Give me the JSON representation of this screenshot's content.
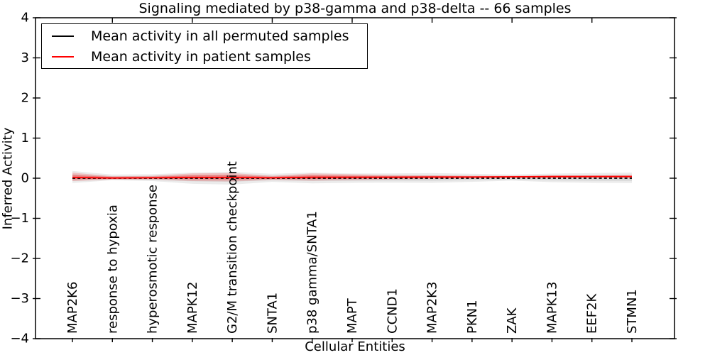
{
  "chart_data": {
    "type": "line",
    "title": "Signaling mediated by p38-gamma and p38-delta -- 66 samples",
    "xlabel": "Cellular Entities",
    "ylabel": "Inferred Activity",
    "ylim": [
      -4,
      4
    ],
    "yticks": [
      -4,
      -3,
      -2,
      -1,
      0,
      1,
      2,
      3,
      4
    ],
    "grid": false,
    "legend_position": "upper left",
    "categories": [
      "MAP2K6",
      "response to hypoxia",
      "hyperosmotic response",
      "MAPK12",
      "G2/M transition checkpoint",
      "SNTA1",
      "p38 gamma/SNTA1",
      "MAPT",
      "CCND1",
      "MAP2K3",
      "PKN1",
      "ZAK",
      "MAPK13",
      "EEF2K",
      "STMN1"
    ],
    "series": [
      {
        "name": "Mean activity in all permuted samples",
        "color": "#000000",
        "line_style": "dashed",
        "values": [
          0,
          0,
          0,
          0,
          0,
          0,
          0,
          0,
          0,
          0,
          0,
          0,
          0,
          0,
          0
        ]
      },
      {
        "name": "Mean activity in patient samples",
        "color": "#ff0000",
        "line_style": "solid",
        "values": [
          0.02,
          0.005,
          0.01,
          0.02,
          0.02,
          0.01,
          0.025,
          0.025,
          0.025,
          0.03,
          0.03,
          0.035,
          0.04,
          0.04,
          0.04
        ]
      }
    ],
    "bands": [
      {
        "name": "permuted samples spread",
        "color": "#000000",
        "upper": [
          0.18,
          0.09,
          0.1,
          0.14,
          0.16,
          0.11,
          0.14,
          0.12,
          0.12,
          0.13,
          0.11,
          0.09,
          0.115,
          0.13,
          0.14
        ],
        "lower": [
          -0.12,
          -0.05,
          -0.07,
          -0.14,
          -0.16,
          -0.09,
          -0.13,
          -0.115,
          -0.11,
          -0.115,
          -0.09,
          -0.06,
          -0.1,
          -0.115,
          -0.12
        ]
      },
      {
        "name": "patient samples spread",
        "color": "#ff0000",
        "upper": [
          0.14,
          0.05,
          0.06,
          0.12,
          0.13,
          0.06,
          0.12,
          0.1,
          0.08,
          0.07,
          0.06,
          0.06,
          0.07,
          0.07,
          0.08
        ],
        "lower": [
          -0.07,
          -0.03,
          -0.03,
          -0.07,
          -0.08,
          -0.04,
          -0.06,
          -0.045,
          -0.03,
          -0.02,
          -0.01,
          0.0,
          0.0,
          0.01,
          0.01
        ]
      }
    ]
  }
}
